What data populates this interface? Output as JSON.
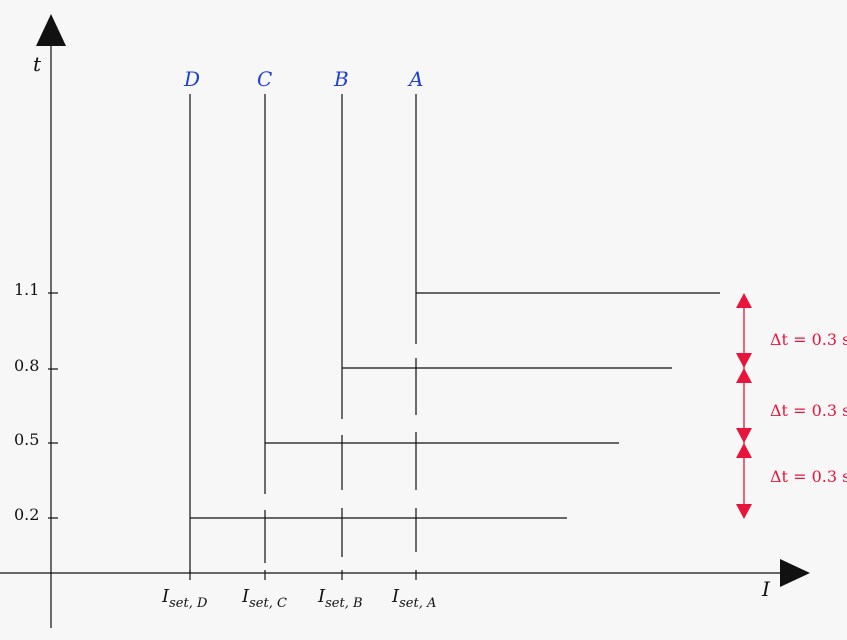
{
  "axes": {
    "y_label": "t",
    "x_label": "I",
    "y_ticks": [
      "1.1",
      "0.8",
      "0.5",
      "0.2"
    ]
  },
  "curves": [
    {
      "label": "D",
      "t": "0.2",
      "iset_main": "I",
      "iset_sub": "set, D"
    },
    {
      "label": "C",
      "t": "0.5",
      "iset_main": "I",
      "iset_sub": "set, C"
    },
    {
      "label": "B",
      "t": "0.8",
      "iset_main": "I",
      "iset_sub": "set, B"
    },
    {
      "label": "A",
      "t": "1.1",
      "iset_main": "I",
      "iset_sub": "set, A"
    }
  ],
  "delta": {
    "color": "#e8143c",
    "labels": [
      "Δt = 0.3 s",
      "Δt = 0.3 s",
      "Δt = 0.3 s"
    ]
  },
  "colors": {
    "axis": "#111111",
    "curve_label": "#1f3fd0",
    "background": "#f7f7f7"
  }
}
